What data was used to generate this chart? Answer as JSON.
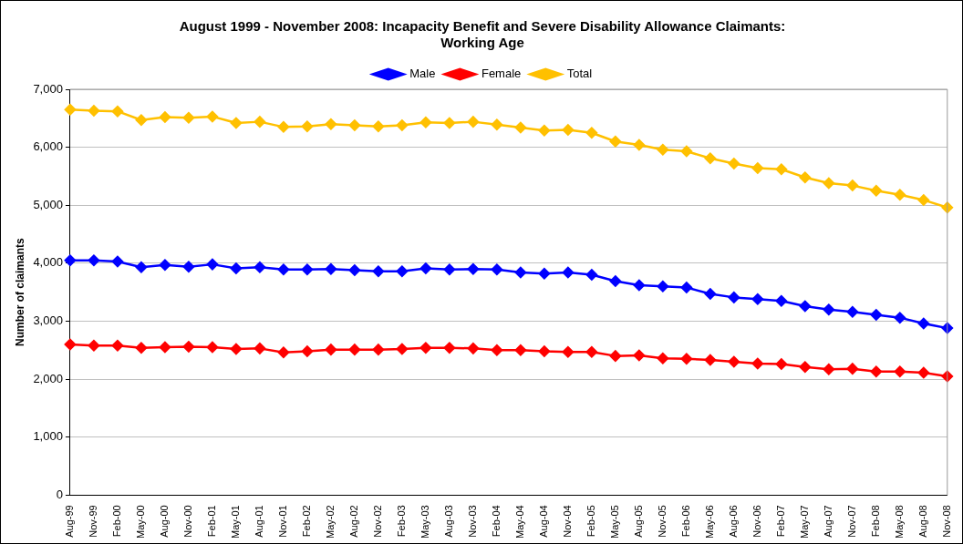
{
  "chart_data": {
    "type": "line",
    "title": "August 1999 - November 2008: Incapacity Benefit and Severe Disability Allowance Claimants:\nWorking Age",
    "ylabel": "Number of claimants",
    "categories": [
      "Aug-99",
      "Nov-99",
      "Feb-00",
      "May-00",
      "Aug-00",
      "Nov-00",
      "Feb-01",
      "May-01",
      "Aug-01",
      "Nov-01",
      "Feb-02",
      "May-02",
      "Aug-02",
      "Nov-02",
      "Feb-03",
      "May-03",
      "Aug-03",
      "Nov-03",
      "Feb-04",
      "May-04",
      "Aug-04",
      "Nov-04",
      "Feb-05",
      "May-05",
      "Aug-05",
      "Nov-05",
      "Feb-06",
      "May-06",
      "Aug-06",
      "Nov-06",
      "Feb-07",
      "May-07",
      "Aug-07",
      "Nov-07",
      "Feb-08",
      "May-08",
      "Aug-08",
      "Nov-08"
    ],
    "series": [
      {
        "name": "Male",
        "color": "#0000ff",
        "values": [
          4050,
          4050,
          4030,
          3930,
          3970,
          3940,
          3980,
          3910,
          3930,
          3890,
          3890,
          3900,
          3880,
          3860,
          3860,
          3910,
          3890,
          3900,
          3890,
          3840,
          3820,
          3840,
          3800,
          3690,
          3620,
          3600,
          3580,
          3470,
          3410,
          3380,
          3350,
          3260,
          3200,
          3160,
          3110,
          3060,
          2960,
          2880
        ]
      },
      {
        "name": "Female",
        "color": "#ff0000",
        "values": [
          2600,
          2580,
          2580,
          2540,
          2550,
          2560,
          2550,
          2520,
          2530,
          2460,
          2480,
          2510,
          2510,
          2510,
          2520,
          2540,
          2540,
          2530,
          2500,
          2500,
          2480,
          2470,
          2470,
          2400,
          2410,
          2360,
          2350,
          2330,
          2300,
          2270,
          2260,
          2210,
          2170,
          2180,
          2130,
          2130,
          2110,
          2050
        ]
      },
      {
        "name": "Total",
        "color": "#ffc000",
        "values": [
          6650,
          6630,
          6620,
          6470,
          6520,
          6510,
          6530,
          6420,
          6440,
          6350,
          6360,
          6400,
          6380,
          6360,
          6380,
          6430,
          6420,
          6440,
          6390,
          6340,
          6290,
          6300,
          6250,
          6100,
          6040,
          5960,
          5930,
          5810,
          5720,
          5640,
          5620,
          5480,
          5380,
          5340,
          5250,
          5180,
          5090,
          4960
        ]
      }
    ],
    "ylim": [
      0,
      7000
    ],
    "yticks": [
      {
        "value": 0,
        "label": "0"
      },
      {
        "value": 1000,
        "label": "1,000"
      },
      {
        "value": 2000,
        "label": "2,000"
      },
      {
        "value": 3000,
        "label": "3,000"
      },
      {
        "value": 4000,
        "label": "4,000"
      },
      {
        "value": 5000,
        "label": "5,000"
      },
      {
        "value": 6000,
        "label": "6,000"
      },
      {
        "value": 7000,
        "label": "7,000"
      }
    ],
    "grid": "y",
    "legend": "top",
    "marker": "diamond",
    "line_style": "solid"
  }
}
